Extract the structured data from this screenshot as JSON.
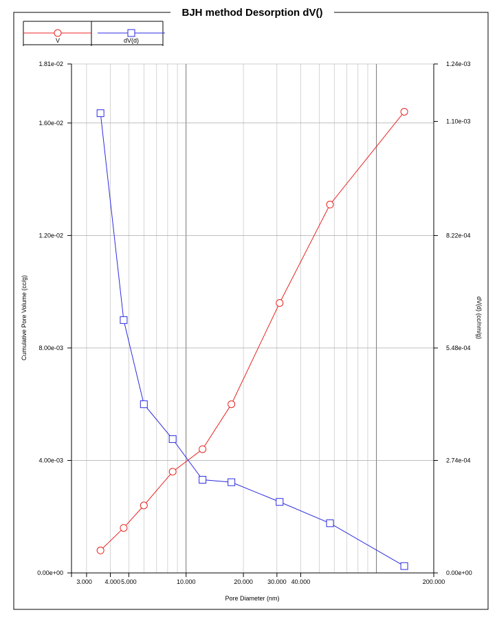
{
  "chart_data": {
    "type": "line",
    "title": "BJH method Desorption  dV()",
    "xlabel": "Pore Diameter (nm)",
    "ylabel_left": "Cumulative Pore Volume (cc/g)",
    "ylabel_right": "dV(d) (cc/nm/g)",
    "x_scale": "log",
    "xlim": [
      2.5,
      200
    ],
    "x_ticks": [
      3,
      4,
      5,
      10,
      20,
      30,
      40,
      200
    ],
    "x_tick_labels": [
      "3.000",
      "4.000",
      "5.000",
      "10.000",
      "20.000",
      "30.000",
      "40.000",
      "200.000"
    ],
    "x_minor_gridlines": [
      3,
      4,
      5,
      6,
      7,
      8,
      9,
      10,
      20,
      30,
      40,
      50,
      60,
      70,
      80,
      90,
      100,
      200
    ],
    "ylim_left": [
      0,
      0.0181
    ],
    "y_ticks_left": [
      0,
      0.004,
      0.008,
      0.012,
      0.016,
      0.0181
    ],
    "y_tick_labels_left": [
      "0.00e+00",
      "4.00e-03",
      "8.00e-03",
      "1.20e-02",
      "1.60e-02",
      "1.81e-02"
    ],
    "ylim_right": [
      0,
      0.00124
    ],
    "y_ticks_right": [
      0,
      0.000274,
      0.000548,
      0.000822,
      0.0011,
      0.00124
    ],
    "y_tick_labels_right": [
      "0.00e+00",
      "2.74e-04",
      "5.48e-04",
      "8.22e-04",
      "1.10e-03",
      "1.24e-03"
    ],
    "legend_position": "top-left",
    "grid": true,
    "series": [
      {
        "name": "V",
        "axis": "left",
        "color": "#e8231f",
        "marker": "circle",
        "x": [
          3.55,
          4.7,
          6.0,
          8.5,
          12.2,
          17.3,
          31.0,
          57.0,
          140.0
        ],
        "y": [
          0.0008,
          0.0016,
          0.0024,
          0.0036,
          0.0044,
          0.006,
          0.0096,
          0.0131,
          0.0164
        ]
      },
      {
        "name": "dV(d)",
        "axis": "right",
        "color": "#2a2ae0",
        "marker": "square",
        "x": [
          3.55,
          4.7,
          6.0,
          8.5,
          12.2,
          17.3,
          31.0,
          57.0,
          140.0
        ],
        "y": [
          0.00112,
          0.000616,
          0.000411,
          0.000326,
          0.000227,
          0.000221,
          0.000173,
          0.000121,
          1.67e-05
        ]
      }
    ]
  }
}
